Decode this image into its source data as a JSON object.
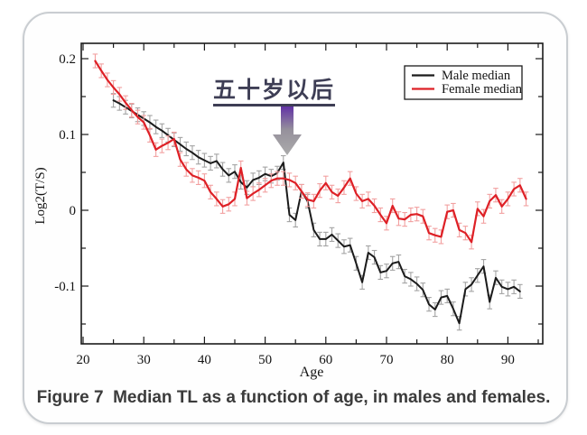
{
  "slide": {
    "caption": "Figure 7  Median TL as a function of age, in males and females.",
    "annotation_text": "五十岁以后"
  },
  "colors": {
    "male_line": "#1b1b1b",
    "female_line": "#de2026",
    "male_error": "#a3a3a3",
    "female_error": "#f2a0a0",
    "annotation_text": "#3e3e55",
    "arrow_top": "#5e2ba6",
    "arrow_mid": "#96919c",
    "arrow_bottom": "#ababab",
    "caption_text": "#3b3b3b",
    "slide_border": "#c9cdd1"
  },
  "chart_data": {
    "type": "line",
    "title": "",
    "xlabel": "Age",
    "ylabel": "Log2(T/S)",
    "xlim": [
      20,
      95.8
    ],
    "ylim": [
      -0.176,
      0.221
    ],
    "grid": false,
    "x_major_ticks": [
      20,
      30,
      40,
      50,
      60,
      70,
      80,
      90
    ],
    "x_tick_labels": [
      "20",
      "30",
      "40",
      "50",
      "60",
      "70",
      "80",
      "90"
    ],
    "x_minor_ticks": [
      25,
      35,
      45,
      55,
      65,
      75,
      85,
      95
    ],
    "y_major_ticks": [
      -0.1,
      0,
      0.1,
      0.2
    ],
    "y_tick_labels": [
      "-0.1",
      "0",
      "0.1",
      "0.2"
    ],
    "y_minor_ticks": [
      -0.15,
      -0.05,
      0.05,
      0.15
    ],
    "error_bar_half_height": 0.009,
    "legend": {
      "position": "top-right",
      "entries": [
        {
          "label": "Male median",
          "color": "#1b1b1b"
        },
        {
          "label": "Female median",
          "color": "#de2026"
        }
      ]
    },
    "series": [
      {
        "name": "Male median",
        "color": "#1b1b1b",
        "error_color": "#a3a3a3",
        "x_start": 25,
        "x_step": 1,
        "y": [
          0.145,
          0.141,
          0.136,
          0.131,
          0.126,
          0.121,
          0.116,
          0.11,
          0.105,
          0.099,
          0.093,
          0.087,
          0.081,
          0.076,
          0.07,
          0.066,
          0.062,
          0.065,
          0.054,
          0.046,
          0.051,
          0.037,
          0.03,
          0.04,
          0.043,
          0.048,
          0.045,
          0.049,
          0.063,
          -0.006,
          -0.013,
          0.025,
          0.012,
          -0.026,
          -0.038,
          -0.038,
          -0.032,
          -0.04,
          -0.048,
          -0.046,
          -0.07,
          -0.095,
          -0.056,
          -0.062,
          -0.082,
          -0.08,
          -0.07,
          -0.068,
          -0.087,
          -0.091,
          -0.097,
          -0.105,
          -0.124,
          -0.131,
          -0.115,
          -0.113,
          -0.13,
          -0.149,
          -0.104,
          -0.098,
          -0.086,
          -0.074,
          -0.121,
          -0.089,
          -0.101,
          -0.104,
          -0.101,
          -0.107
        ]
      },
      {
        "name": "Female median",
        "color": "#de2026",
        "error_color": "#f2a0a0",
        "x_start": 22,
        "x_step": 1,
        "y": [
          0.197,
          0.184,
          0.172,
          0.162,
          0.153,
          0.142,
          0.132,
          0.123,
          0.116,
          0.099,
          0.08,
          0.085,
          0.089,
          0.094,
          0.067,
          0.054,
          0.046,
          0.043,
          0.039,
          0.024,
          0.015,
          0.005,
          0.008,
          0.015,
          0.056,
          0.016,
          0.022,
          0.027,
          0.033,
          0.039,
          0.042,
          0.042,
          0.04,
          0.036,
          0.025,
          0.014,
          0.012,
          0.026,
          0.036,
          0.024,
          0.019,
          0.03,
          0.042,
          0.022,
          0.012,
          0.015,
          0.006,
          -0.006,
          -0.017,
          0.006,
          -0.011,
          -0.012,
          -0.006,
          -0.005,
          -0.008,
          -0.03,
          -0.033,
          -0.035,
          -0.002,
          0.0,
          -0.026,
          -0.03,
          -0.042,
          0.002,
          -0.008,
          0.012,
          0.02,
          0.005,
          0.015,
          0.028,
          0.033,
          0.015
        ]
      }
    ]
  }
}
